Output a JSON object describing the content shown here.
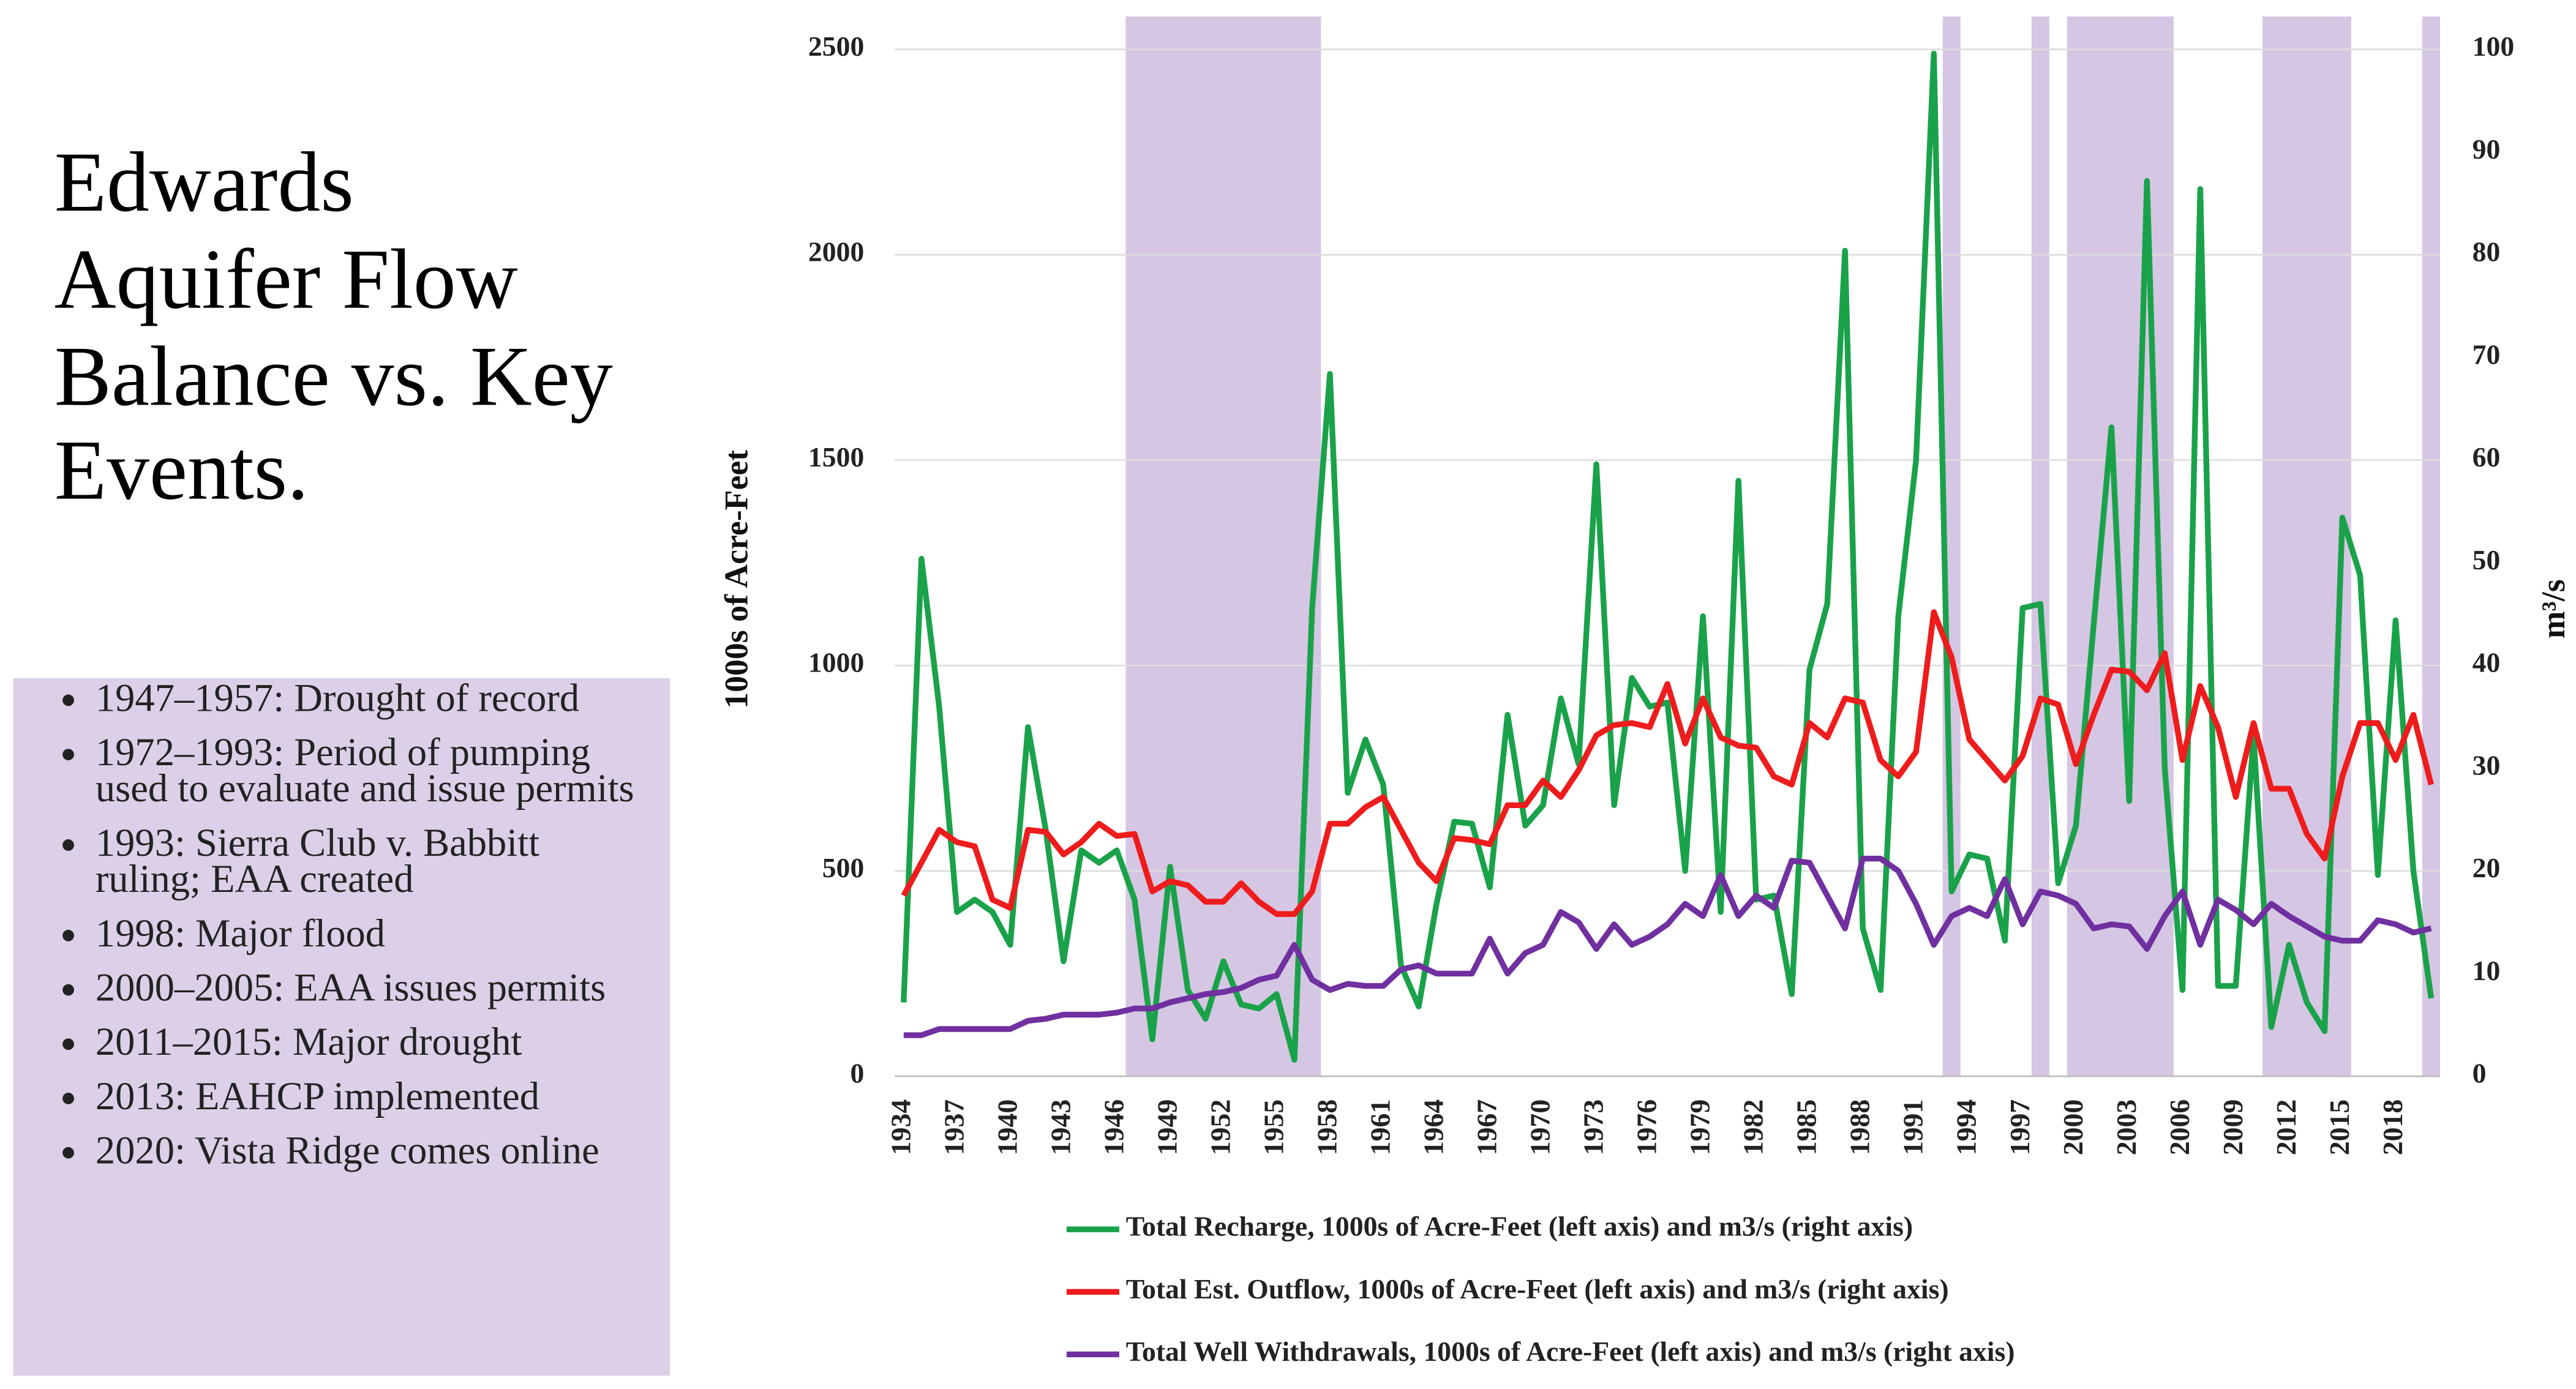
{
  "title_lines": [
    "Edwards",
    "Aquifer Flow",
    "Balance vs. Key",
    "Events."
  ],
  "events": [
    "1947–1957: Drought of record",
    "1972–1993: Period of pumping used to evaluate and issue permits",
    "1993: Sierra Club v. Babbitt ruling; EAA created",
    "1998: Major flood",
    "2000–2005: EAA issues permits",
    "2011–2015: Major drought",
    "2013: EAHCP implemented",
    "2020: Vista Ridge comes online"
  ],
  "chart_data": {
    "type": "line",
    "x": [
      1934,
      1935,
      1936,
      1937,
      1938,
      1939,
      1940,
      1941,
      1942,
      1943,
      1944,
      1945,
      1946,
      1947,
      1948,
      1949,
      1950,
      1951,
      1952,
      1953,
      1954,
      1955,
      1956,
      1957,
      1958,
      1959,
      1960,
      1961,
      1962,
      1963,
      1964,
      1965,
      1966,
      1967,
      1968,
      1969,
      1970,
      1971,
      1972,
      1973,
      1974,
      1975,
      1976,
      1977,
      1978,
      1979,
      1980,
      1981,
      1982,
      1983,
      1984,
      1985,
      1986,
      1987,
      1988,
      1989,
      1990,
      1991,
      1992,
      1993,
      1994,
      1995,
      1996,
      1997,
      1998,
      1999,
      2000,
      2001,
      2002,
      2003,
      2004,
      2005,
      2006,
      2007,
      2008,
      2009,
      2010,
      2011,
      2012,
      2013,
      2014,
      2015,
      2016,
      2017,
      2018,
      2019,
      2020
    ],
    "xlim": [
      1933.5,
      2020.5
    ],
    "xticks": [
      1934,
      1937,
      1940,
      1943,
      1946,
      1949,
      1952,
      1955,
      1958,
      1961,
      1964,
      1967,
      1970,
      1973,
      1976,
      1979,
      1982,
      1985,
      1988,
      1991,
      1994,
      1997,
      2000,
      2003,
      2006,
      2009,
      2012,
      2015,
      2018
    ],
    "ylabel": "1000s of Acre-Feet",
    "ylim": [
      0,
      2500
    ],
    "yticks": [
      0,
      500,
      1000,
      1500,
      2000,
      2500
    ],
    "y2label": "m³/s",
    "y2lim": [
      0,
      100
    ],
    "y2ticks": [
      0,
      10,
      20,
      30,
      40,
      50,
      60,
      70,
      80,
      90,
      100
    ],
    "grid": true,
    "legend": "bottom",
    "shaded_spans": [
      {
        "start": 1947,
        "end": 1957
      },
      {
        "start": 1993,
        "end": 1993
      },
      {
        "start": 1998,
        "end": 1998
      },
      {
        "start": 2000,
        "end": 2005
      },
      {
        "start": 2011,
        "end": 2015
      },
      {
        "start": 2020,
        "end": 2020
      }
    ],
    "span_color": "#d5c6e3",
    "series": [
      {
        "name": "Total Recharge, 1000s of Acre-Feet (left axis) and m3/s (right axis)",
        "color": "#1aa24a",
        "values": [
          180,
          1260,
          900,
          400,
          430,
          400,
          320,
          850,
          600,
          280,
          550,
          520,
          550,
          430,
          90,
          510,
          210,
          140,
          280,
          175,
          165,
          200,
          40,
          1140,
          1710,
          690,
          820,
          710,
          270,
          170,
          420,
          620,
          615,
          460,
          880,
          610,
          660,
          920,
          760,
          1490,
          660,
          970,
          900,
          910,
          500,
          1120,
          400,
          1450,
          430,
          440,
          200,
          990,
          1150,
          2010,
          360,
          210,
          1120,
          1500,
          2490,
          450,
          540,
          530,
          330,
          1140,
          1150,
          470,
          610,
          1100,
          1580,
          670,
          2180,
          750,
          210,
          2160,
          220,
          220,
          830,
          120,
          320,
          180,
          110,
          1360,
          1220,
          490,
          1110,
          500,
          190
        ]
      },
      {
        "name": "Total Est. Outflow, 1000s of Acre-Feet (left axis) and m3/s (right axis)",
        "color": "#ee1c1c",
        "values": [
          440,
          520,
          600,
          570,
          560,
          430,
          410,
          600,
          595,
          540,
          570,
          615,
          585,
          590,
          450,
          475,
          465,
          425,
          425,
          470,
          425,
          395,
          395,
          450,
          615,
          615,
          655,
          680,
          600,
          520,
          475,
          580,
          575,
          565,
          660,
          660,
          720,
          680,
          745,
          830,
          855,
          860,
          850,
          955,
          810,
          920,
          825,
          805,
          800,
          730,
          710,
          860,
          825,
          920,
          910,
          770,
          730,
          790,
          1130,
          1020,
          820,
          770,
          720,
          780,
          920,
          905,
          760,
          880,
          990,
          985,
          940,
          1030,
          770,
          950,
          850,
          680,
          860,
          700,
          700,
          590,
          530,
          730,
          860,
          860,
          770,
          880,
          710
        ]
      },
      {
        "name": "Total Well Withdrawals, 1000s of Acre-Feet (left axis) and m3/s (right axis)",
        "color": "#7030a0",
        "values": [
          100,
          100,
          115,
          115,
          115,
          115,
          115,
          135,
          140,
          150,
          150,
          150,
          155,
          165,
          165,
          180,
          190,
          200,
          205,
          215,
          235,
          245,
          320,
          235,
          210,
          225,
          220,
          220,
          260,
          270,
          250,
          250,
          250,
          335,
          250,
          300,
          320,
          400,
          375,
          310,
          370,
          320,
          340,
          370,
          420,
          390,
          490,
          390,
          440,
          410,
          525,
          520,
          440,
          360,
          530,
          530,
          500,
          420,
          320,
          390,
          410,
          390,
          480,
          370,
          450,
          440,
          420,
          360,
          370,
          365,
          310,
          390,
          450,
          320,
          430,
          405,
          370,
          420,
          390,
          365,
          340,
          330,
          330,
          380,
          370,
          350,
          360
        ]
      }
    ]
  }
}
